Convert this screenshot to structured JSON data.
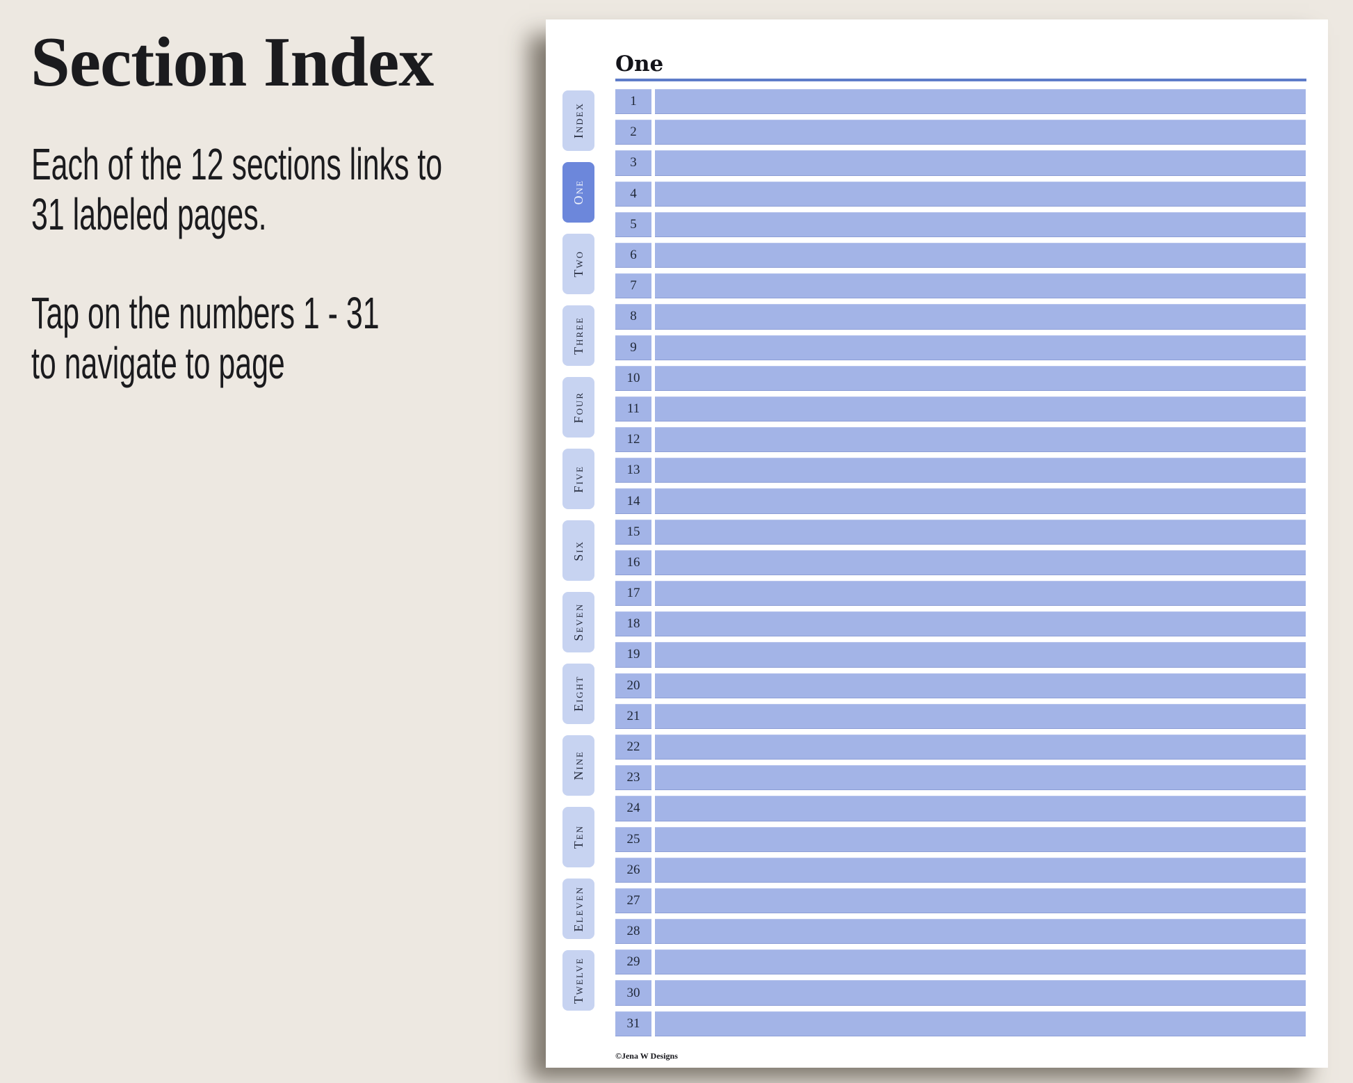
{
  "left_panel": {
    "title": "Section Index",
    "paragraph1": [
      "Each of the 12 sections links to",
      "31 labeled pages."
    ],
    "paragraph2": [
      "Tap on the numbers 1 - 31",
      "to navigate to page"
    ]
  },
  "page": {
    "title": "One",
    "footer": "©Jena W Designs",
    "tabs": [
      {
        "label": "Index",
        "active": false
      },
      {
        "label": "One",
        "active": true
      },
      {
        "label": "Two",
        "active": false
      },
      {
        "label": "Three",
        "active": false
      },
      {
        "label": "Four",
        "active": false
      },
      {
        "label": "Five",
        "active": false
      },
      {
        "label": "Six",
        "active": false
      },
      {
        "label": "Seven",
        "active": false
      },
      {
        "label": "Eight",
        "active": false
      },
      {
        "label": "Nine",
        "active": false
      },
      {
        "label": "Ten",
        "active": false
      },
      {
        "label": "Eleven",
        "active": false
      },
      {
        "label": "Twelve",
        "active": false
      }
    ],
    "row_numbers": [
      1,
      2,
      3,
      4,
      5,
      6,
      7,
      8,
      9,
      10,
      11,
      12,
      13,
      14,
      15,
      16,
      17,
      18,
      19,
      20,
      21,
      22,
      23,
      24,
      25,
      26,
      27,
      28,
      29,
      30,
      31
    ]
  },
  "colors": {
    "background": "#EDE8E1",
    "page": "#FFFFFF",
    "bar": "#A3B4E7",
    "tab_inactive": "#C7D3F1",
    "tab_active": "#6C87DB",
    "underline": "#5E7CC9",
    "ink": "#1B1B1E",
    "number_ink": "#1F2737",
    "tab_ink": "#262C3E",
    "tab_active_ink": "#F2F5FC"
  }
}
